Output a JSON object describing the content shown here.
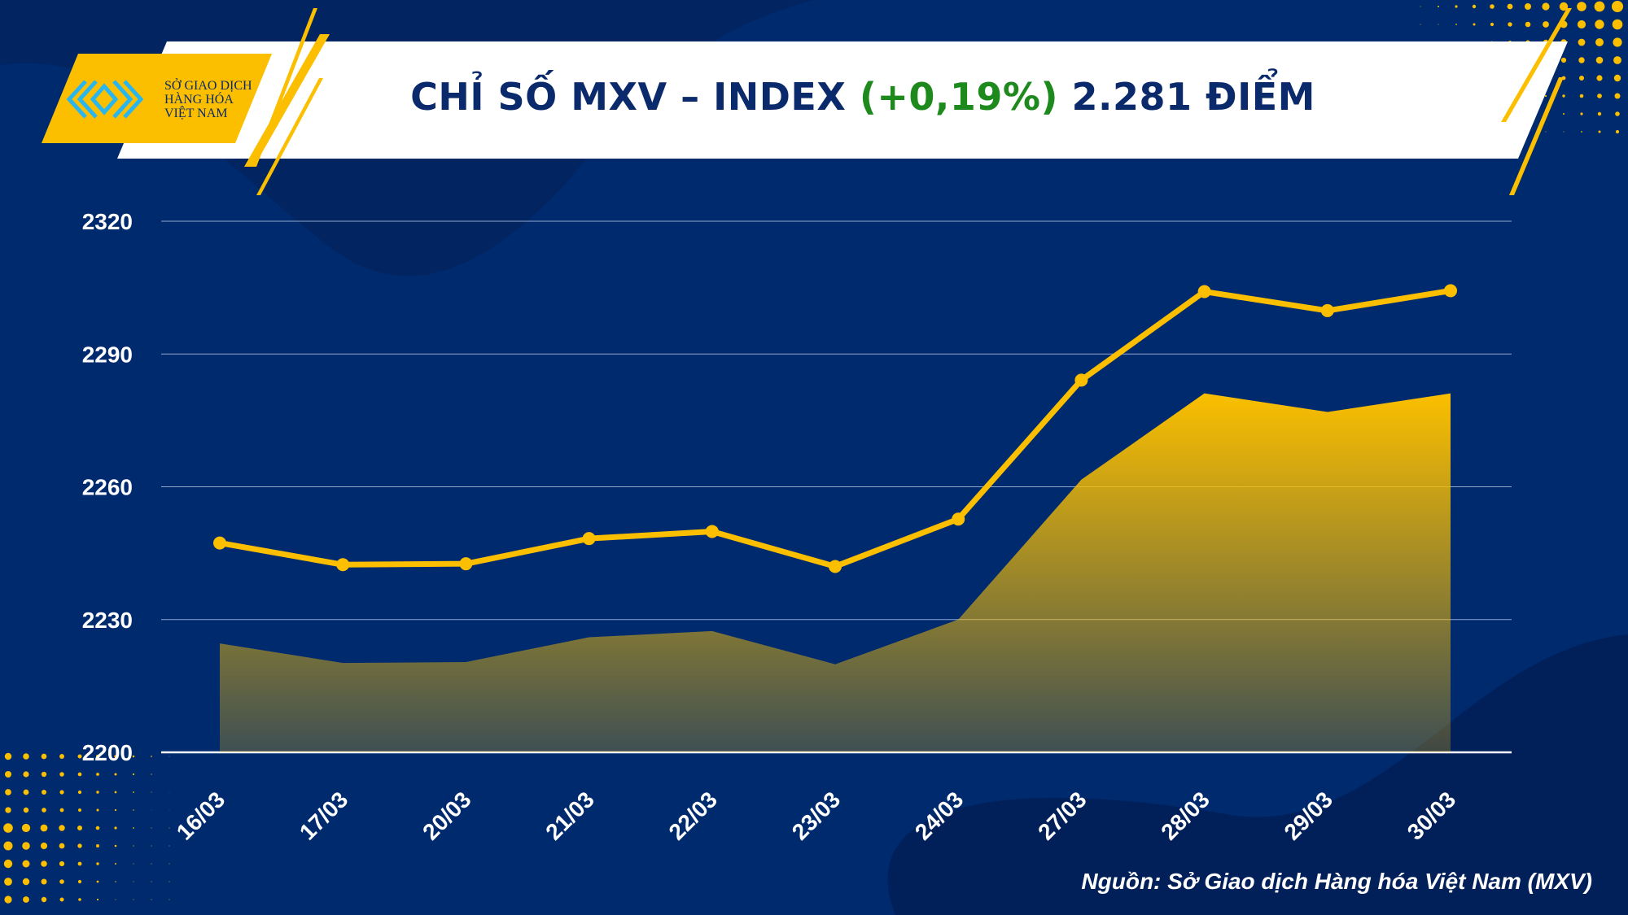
{
  "header": {
    "title_prefix": "CHỈ SỐ MXV – INDEX",
    "title_change": "(+0,19%)",
    "title_suffix": "2.281 ĐIỂM",
    "logo_line1": "SỞ GIAO DỊCH",
    "logo_line2": "HÀNG HÓA",
    "logo_line3": "VIỆT NAM"
  },
  "source": "Nguồn: Sở Giao dịch Hàng hóa Việt Nam (MXV)",
  "colors": {
    "background": "#002a6e",
    "accent": "#fbbf00",
    "positive": "#1e8a1e",
    "title": "#0b2a6b"
  },
  "chart_data": {
    "type": "area",
    "title": "",
    "xlabel": "",
    "ylabel": "",
    "categories": [
      "16/03",
      "17/03",
      "20/03",
      "21/03",
      "22/03",
      "23/03",
      "24/03",
      "27/03",
      "28/03",
      "29/03",
      "30/03"
    ],
    "ylim": [
      2200,
      2320
    ],
    "yticks": [
      2200,
      2230,
      2260,
      2290,
      2320
    ],
    "grid": true,
    "series": [
      {
        "type": "area",
        "values": [
          2224.6,
          2220.2,
          2220.4,
          2226.0,
          2227.4,
          2219.9,
          2230.0,
          2261.6,
          2281.1,
          2276.9,
          2281.1
        ]
      },
      {
        "type": "line",
        "values": [
          2247.3,
          2242.4,
          2242.6,
          2248.3,
          2249.9,
          2242.0,
          2252.7,
          2284.1,
          2304.1,
          2299.8,
          2304.3
        ]
      }
    ]
  }
}
